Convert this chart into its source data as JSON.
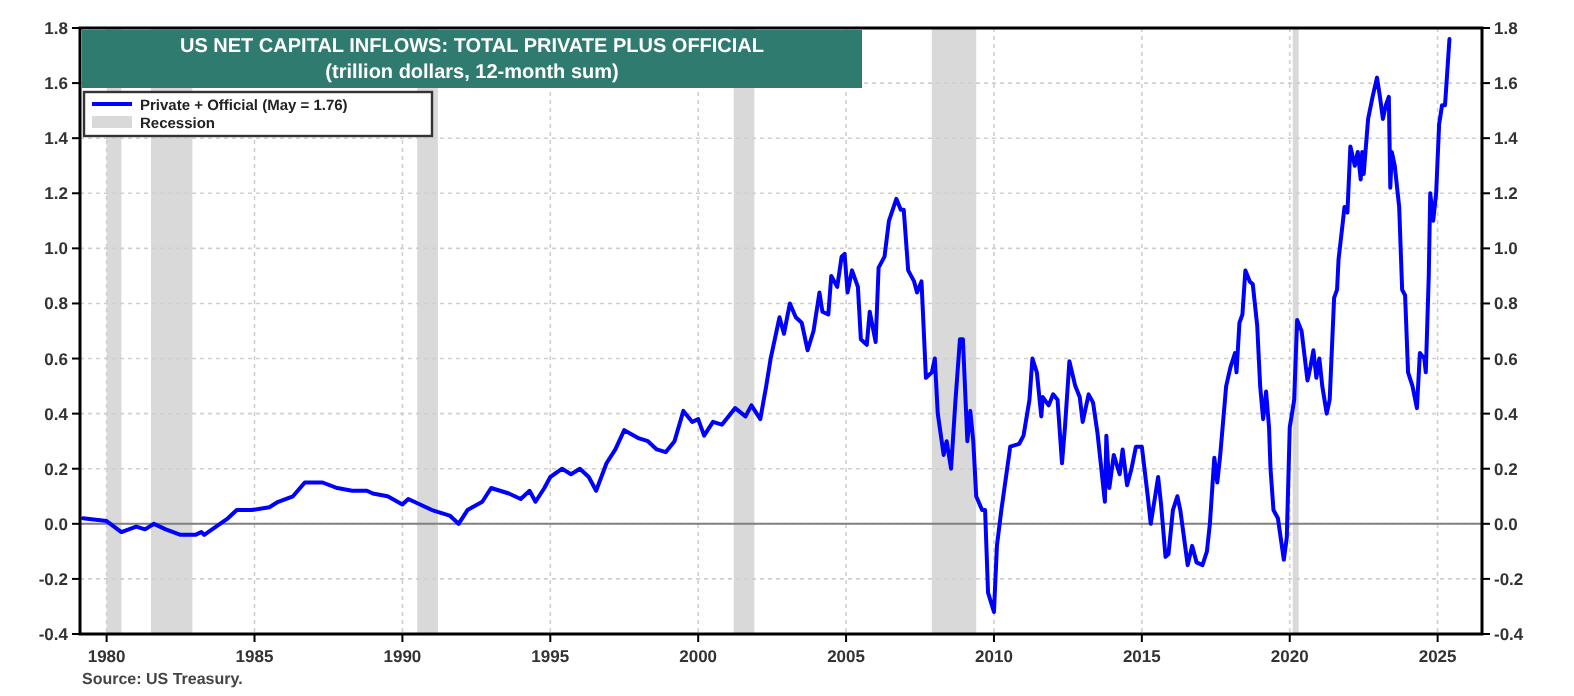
{
  "chart_data": {
    "type": "line",
    "title": "US NET CAPITAL INFLOWS: TOTAL PRIVATE PLUS OFFICIAL",
    "subtitle": "(trillion dollars, 12-month sum)",
    "annotations": [
      "Source: US Treasury."
    ],
    "xlim": [
      1979.1,
      2026.5
    ],
    "xticks": [
      1980,
      1985,
      1990,
      1995,
      2000,
      2005,
      2010,
      2015,
      2020,
      2025
    ],
    "ylim": [
      -0.4,
      1.8
    ],
    "yticks": [
      {
        "value": -0.4,
        "label": "-0.4"
      },
      {
        "value": -0.2,
        "label": "-0.2"
      },
      {
        "value": 0,
        "label": "0.0"
      },
      {
        "value": 0.2,
        "label": "0.2"
      },
      {
        "value": 0.4,
        "label": "0.4"
      },
      {
        "value": 0.6,
        "label": "0.6"
      },
      {
        "value": 0.8,
        "label": "0.8"
      },
      {
        "value": 1,
        "label": "1.0"
      },
      {
        "value": 1.2,
        "label": "1.2"
      },
      {
        "value": 1.4,
        "label": "1.4"
      },
      {
        "value": 1.6,
        "label": "1.6"
      },
      {
        "value": 1.8,
        "label": "1.8"
      }
    ],
    "y2lim": [
      -0.4,
      1.8
    ],
    "y2ticks": [
      {
        "value": -0.4,
        "label": "-0.4"
      },
      {
        "value": -0.2,
        "label": "-0.2"
      },
      {
        "value": 0,
        "label": "0.0"
      },
      {
        "value": 0.2,
        "label": "0.2"
      },
      {
        "value": 0.4,
        "label": "0.4"
      },
      {
        "value": 0.6,
        "label": "0.6"
      },
      {
        "value": 0.8,
        "label": "0.8"
      },
      {
        "value": 1,
        "label": "1.0"
      },
      {
        "value": 1.2,
        "label": "1.2"
      },
      {
        "value": 1.4,
        "label": "1.4"
      },
      {
        "value": 1.6,
        "label": "1.6"
      },
      {
        "value": 1.8,
        "label": "1.8"
      }
    ],
    "grid": true,
    "legend": "top left",
    "line_style": "solid",
    "ref_lines": [
      {
        "axis": "y",
        "value": 0,
        "color": "#808080"
      }
    ],
    "bands": [
      {
        "axis": "x",
        "from": 1980.0,
        "to": 1980.5,
        "label": "Recession",
        "color": "#d9d9d9"
      },
      {
        "axis": "x",
        "from": 1981.5,
        "to": 1982.9,
        "color": "#d9d9d9"
      },
      {
        "axis": "x",
        "from": 1990.5,
        "to": 1991.2,
        "color": "#d9d9d9"
      },
      {
        "axis": "x",
        "from": 2001.2,
        "to": 2001.9,
        "color": "#d9d9d9"
      },
      {
        "axis": "x",
        "from": 2007.9,
        "to": 2009.4,
        "color": "#d9d9d9"
      },
      {
        "axis": "x",
        "from": 2020.1,
        "to": 2020.3,
        "color": "#d9d9d9"
      }
    ],
    "series": [
      {
        "name": "Private + Official (May = 1.76)",
        "color": "#0000ff",
        "x": [
          1979.2,
          1980.0,
          1980.5,
          1981.0,
          1981.3,
          1981.6,
          1982.0,
          1982.5,
          1983.0,
          1983.2,
          1983.3,
          1983.7,
          1984.1,
          1984.4,
          1984.9,
          1985.5,
          1985.8,
          1986.3,
          1986.7,
          1987.3,
          1987.8,
          1988.3,
          1988.8,
          1989.0,
          1989.5,
          1990.0,
          1990.2,
          1990.6,
          1991.0,
          1991.6,
          1991.9,
          1992.2,
          1992.7,
          1993.0,
          1993.6,
          1994.0,
          1994.3,
          1994.5,
          1994.8,
          1995.0,
          1995.4,
          1995.7,
          1996.0,
          1996.3,
          1996.55,
          1996.9,
          1997.2,
          1997.5,
          1998.0,
          1998.3,
          1998.6,
          1998.9,
          1999.2,
          1999.5,
          1999.8,
          2000.0,
          2000.2,
          2000.5,
          2000.8,
          2001.25,
          2001.6,
          2001.8,
          2002.1,
          2002.3,
          2002.45,
          2002.65,
          2002.75,
          2002.9,
          2003.1,
          2003.3,
          2003.5,
          2003.7,
          2003.9,
          2004.1,
          2004.2,
          2004.4,
          2004.5,
          2004.7,
          2004.85,
          2004.95,
          2005.05,
          2005.2,
          2005.4,
          2005.5,
          2005.7,
          2005.8,
          2006.0,
          2006.1,
          2006.3,
          2006.45,
          2006.7,
          2006.85,
          2006.95,
          2007.1,
          2007.3,
          2007.4,
          2007.55,
          2007.7,
          2007.9,
          2008.0,
          2008.1,
          2008.3,
          2008.4,
          2008.55,
          2008.7,
          2008.85,
          2008.95,
          2009.1,
          2009.2,
          2009.3,
          2009.4,
          2009.6,
          2009.7,
          2009.8,
          2010.0,
          2010.1,
          2010.25,
          2010.55,
          2010.85,
          2011.0,
          2011.2,
          2011.3,
          2011.45,
          2011.6,
          2011.65,
          2011.85,
          2012.0,
          2012.15,
          2012.3,
          2012.4,
          2012.55,
          2012.75,
          2012.9,
          2013.0,
          2013.2,
          2013.35,
          2013.5,
          2013.75,
          2013.8,
          2013.9,
          2014.05,
          2014.25,
          2014.35,
          2014.5,
          2014.65,
          2014.8,
          2015.0,
          2015.2,
          2015.3,
          2015.45,
          2015.55,
          2015.65,
          2015.8,
          2015.9,
          2016.05,
          2016.2,
          2016.3,
          2016.55,
          2016.7,
          2016.85,
          2017.05,
          2017.2,
          2017.3,
          2017.45,
          2017.55,
          2017.65,
          2017.85,
          2018.0,
          2018.15,
          2018.2,
          2018.3,
          2018.4,
          2018.5,
          2018.65,
          2018.75,
          2018.9,
          2019.0,
          2019.1,
          2019.2,
          2019.3,
          2019.35,
          2019.45,
          2019.6,
          2019.8,
          2019.9,
          2020.0,
          2020.15,
          2020.25,
          2020.4,
          2020.6,
          2020.7,
          2020.8,
          2020.9,
          2021.0,
          2021.1,
          2021.25,
          2021.35,
          2021.5,
          2021.6,
          2021.65,
          2021.8,
          2021.85,
          2021.95,
          2022.05,
          2022.2,
          2022.3,
          2022.4,
          2022.45,
          2022.5,
          2022.65,
          2022.8,
          2022.95,
          2023.05,
          2023.15,
          2023.25,
          2023.35,
          2023.4,
          2023.45,
          2023.55,
          2023.7,
          2023.8,
          2023.9,
          2024.0,
          2024.15,
          2024.3,
          2024.4,
          2024.55,
          2024.6,
          2024.7,
          2024.75,
          2024.85,
          2024.95,
          2025.05,
          2025.15,
          2025.25,
          2025.4
        ],
        "values": [
          0.02,
          0.01,
          -0.03,
          -0.01,
          -0.02,
          0.0,
          -0.02,
          -0.04,
          -0.04,
          -0.03,
          -0.04,
          -0.01,
          0.02,
          0.05,
          0.05,
          0.06,
          0.08,
          0.1,
          0.15,
          0.15,
          0.13,
          0.12,
          0.12,
          0.11,
          0.1,
          0.07,
          0.09,
          0.07,
          0.05,
          0.03,
          0.0,
          0.05,
          0.08,
          0.13,
          0.11,
          0.09,
          0.12,
          0.08,
          0.13,
          0.17,
          0.2,
          0.18,
          0.2,
          0.17,
          0.12,
          0.22,
          0.27,
          0.34,
          0.31,
          0.3,
          0.27,
          0.26,
          0.3,
          0.41,
          0.37,
          0.38,
          0.32,
          0.37,
          0.36,
          0.42,
          0.39,
          0.43,
          0.38,
          0.5,
          0.6,
          0.7,
          0.75,
          0.69,
          0.8,
          0.75,
          0.73,
          0.63,
          0.7,
          0.84,
          0.77,
          0.76,
          0.9,
          0.86,
          0.97,
          0.98,
          0.84,
          0.92,
          0.86,
          0.67,
          0.65,
          0.77,
          0.66,
          0.93,
          0.97,
          1.1,
          1.18,
          1.14,
          1.14,
          0.92,
          0.88,
          0.84,
          0.88,
          0.53,
          0.55,
          0.6,
          0.4,
          0.25,
          0.3,
          0.2,
          0.45,
          0.67,
          0.67,
          0.3,
          0.41,
          0.3,
          0.1,
          0.05,
          0.05,
          -0.25,
          -0.32,
          -0.08,
          0.05,
          0.28,
          0.29,
          0.32,
          0.45,
          0.6,
          0.55,
          0.39,
          0.46,
          0.43,
          0.47,
          0.45,
          0.22,
          0.35,
          0.59,
          0.5,
          0.46,
          0.37,
          0.47,
          0.44,
          0.33,
          0.08,
          0.32,
          0.13,
          0.25,
          0.18,
          0.27,
          0.14,
          0.2,
          0.28,
          0.28,
          0.1,
          0.0,
          0.1,
          0.17,
          0.07,
          -0.12,
          -0.11,
          0.05,
          0.1,
          0.05,
          -0.15,
          -0.08,
          -0.14,
          -0.15,
          -0.1,
          0.0,
          0.24,
          0.15,
          0.25,
          0.5,
          0.57,
          0.62,
          0.55,
          0.73,
          0.76,
          0.92,
          0.88,
          0.87,
          0.72,
          0.5,
          0.38,
          0.48,
          0.35,
          0.2,
          0.05,
          0.02,
          -0.13,
          -0.05,
          0.35,
          0.45,
          0.74,
          0.7,
          0.52,
          0.57,
          0.63,
          0.53,
          0.6,
          0.5,
          0.4,
          0.45,
          0.82,
          0.85,
          0.96,
          1.1,
          1.15,
          1.13,
          1.37,
          1.3,
          1.35,
          1.25,
          1.35,
          1.27,
          1.47,
          1.55,
          1.62,
          1.55,
          1.47,
          1.52,
          1.55,
          1.22,
          1.35,
          1.3,
          1.15,
          0.85,
          0.83,
          0.55,
          0.5,
          0.42,
          0.62,
          0.6,
          0.55,
          0.9,
          1.2,
          1.1,
          1.2,
          1.45,
          1.52,
          1.52,
          1.76
        ]
      }
    ]
  }
}
